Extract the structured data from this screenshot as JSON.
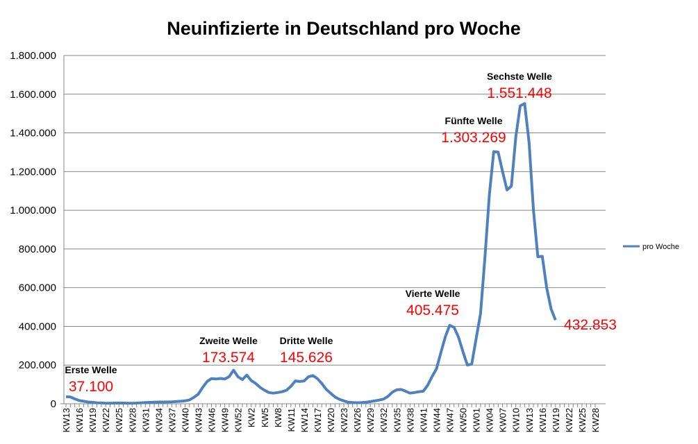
{
  "chart_data": {
    "type": "line",
    "title": "Neuinfizierte in Deutschland pro Woche",
    "xlabel": "",
    "ylabel": "",
    "ylim": [
      0,
      1800000
    ],
    "yticks": [
      0,
      200000,
      400000,
      600000,
      800000,
      1000000,
      1200000,
      1400000,
      1600000,
      1800000
    ],
    "ytick_labels": [
      "0",
      "200.000",
      "400.000",
      "600.000",
      "800.000",
      "1.000.000",
      "1.200.000",
      "1.400.000",
      "1.600.000",
      "1.800.000"
    ],
    "grid": "horizontal",
    "legend_position": "right",
    "series_color": "#4f81bd",
    "annotation_label_color": "#000000",
    "annotation_value_color": "#ff0000",
    "categories": [
      "KW13",
      "KW14",
      "KW15",
      "KW16",
      "KW17",
      "KW18",
      "KW19",
      "KW20",
      "KW21",
      "KW22",
      "KW23",
      "KW24",
      "KW25",
      "KW26",
      "KW27",
      "KW28",
      "KW29",
      "KW30",
      "KW31",
      "KW32",
      "KW33",
      "KW34",
      "KW35",
      "KW36",
      "KW37",
      "KW38",
      "KW39",
      "KW40",
      "KW41",
      "KW42",
      "KW43",
      "KW44",
      "KW45",
      "KW46",
      "KW47",
      "KW48",
      "KW49",
      "KW50",
      "KW51",
      "KW52",
      "KW53",
      "KW1",
      "KW2",
      "KW3",
      "KW4",
      "KW5",
      "KW6",
      "KW7",
      "KW8",
      "KW9",
      "KW10",
      "KW11",
      "KW12",
      "KW13",
      "KW14",
      "KW15",
      "KW16",
      "KW17",
      "KW18",
      "KW19",
      "KW20",
      "KW21",
      "KW22",
      "KW23",
      "KW24",
      "KW25",
      "KW26",
      "KW27",
      "KW28",
      "KW29",
      "KW30",
      "KW31",
      "KW32",
      "KW33",
      "KW34",
      "KW35",
      "KW36",
      "KW37",
      "KW38",
      "KW39",
      "KW40",
      "KW41",
      "KW42",
      "KW43",
      "KW44",
      "KW45",
      "KW46",
      "KW47",
      "KW48",
      "KW49",
      "KW50",
      "KW51",
      "KW52",
      "KW01",
      "KW02",
      "KW03",
      "KW04",
      "KW05",
      "KW06",
      "KW07",
      "KW08",
      "KW09",
      "KW10",
      "KW11",
      "KW12",
      "KW13",
      "KW14",
      "KW15",
      "KW16",
      "KW17",
      "KW18",
      "KW19",
      "KW20",
      "KW21",
      "KW22",
      "KW23",
      "KW24",
      "KW25",
      "KW26",
      "KW27",
      "KW28"
    ],
    "tick_label_step": 3,
    "series": [
      {
        "name": "pro Woche",
        "values": [
          37100,
          35000,
          25000,
          17000,
          13000,
          9000,
          7500,
          5000,
          4500,
          3000,
          2500,
          3500,
          4000,
          3500,
          3000,
          3000,
          3500,
          5000,
          6000,
          7000,
          8000,
          9000,
          9000,
          9500,
          10000,
          12000,
          13000,
          15000,
          20000,
          33000,
          50000,
          85000,
          115000,
          130000,
          128000,
          131000,
          128000,
          140000,
          173574,
          140000,
          125000,
          148000,
          120000,
          105000,
          85000,
          70000,
          58000,
          55000,
          58000,
          62000,
          70000,
          90000,
          118000,
          115000,
          118000,
          140000,
          145626,
          130000,
          105000,
          75000,
          55000,
          35000,
          23000,
          15000,
          8000,
          6000,
          5500,
          6000,
          8000,
          11000,
          15000,
          19000,
          24000,
          38000,
          60000,
          72000,
          74000,
          65000,
          55000,
          58000,
          62000,
          65000,
          95000,
          140000,
          180000,
          265000,
          345000,
          405475,
          395000,
          345000,
          270000,
          200000,
          205000,
          335000,
          466000,
          760000,
          1080000,
          1303269,
          1300000,
          1200000,
          1105000,
          1125000,
          1380000,
          1540000,
          1551448,
          1350000,
          1000000,
          760000,
          762000,
          600000,
          490000,
          432853,
          null,
          null,
          null,
          null,
          null,
          null,
          null,
          null,
          null
        ]
      }
    ],
    "annotations": [
      {
        "label": "Erste Welle",
        "value_text": "37.100",
        "point_index": 0
      },
      {
        "label": "Zweite Welle",
        "value_text": "173.574",
        "point_index": 38
      },
      {
        "label": "Dritte Welle",
        "value_text": "145.626",
        "point_index": 56
      },
      {
        "label": "Vierte Welle",
        "value_text": "405.475",
        "point_index": 87
      },
      {
        "label": "Fünfte Welle",
        "value_text": "1.303.269",
        "point_index": 97
      },
      {
        "label": "Sechste Welle",
        "value_text": "1.551.448",
        "point_index": 104
      },
      {
        "label": "",
        "value_text": "432.853",
        "point_index": 111
      }
    ]
  }
}
